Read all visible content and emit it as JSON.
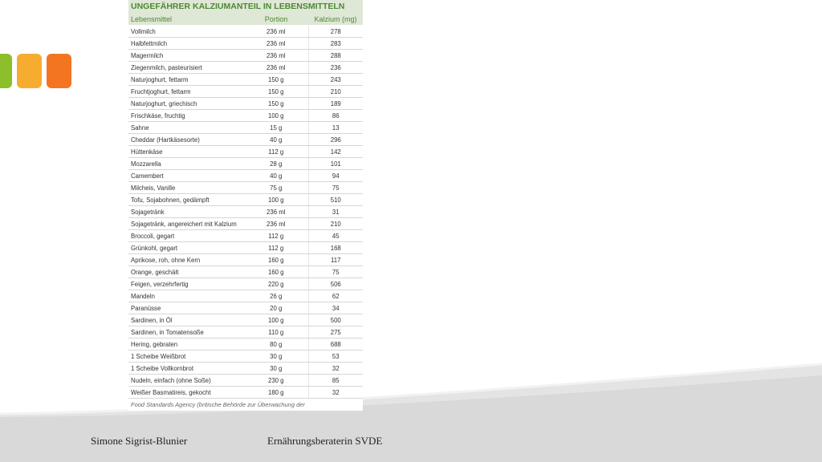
{
  "table": {
    "title": "UNGEFÄHRER KALZIUMANTEIL IN LEBENSMITTELN",
    "headers": [
      "Lebensmittel",
      "Portion",
      "Kalzium (mg)"
    ],
    "rows": [
      [
        "Vollmilch",
        "236 ml",
        "278"
      ],
      [
        "Halbfettmilch",
        "236 ml",
        "283"
      ],
      [
        "Magermilch",
        "236 ml",
        "288"
      ],
      [
        "Ziegenmilch, pasteurisiert",
        "236 ml",
        "236"
      ],
      [
        "Naturjoghurt, fettarm",
        "150 g",
        "243"
      ],
      [
        "Fruchtjoghurt, fettarm",
        "150 g",
        "210"
      ],
      [
        "Naturjoghurt, griechisch",
        "150 g",
        "189"
      ],
      [
        "Frischkäse, fruchtig",
        "100 g",
        "86"
      ],
      [
        "Sahne",
        "15 g",
        "13"
      ],
      [
        "Cheddar (Hartkäsesorte)",
        "40 g",
        "296"
      ],
      [
        "Hüttenkäse",
        "112 g",
        "142"
      ],
      [
        "Mozzarella",
        "28 g",
        "101"
      ],
      [
        "Camembert",
        "40 g",
        "94"
      ],
      [
        "Milcheis, Vanille",
        "75 g",
        "75"
      ],
      [
        "Tofu, Sojabohnen, gedämpft",
        "100 g",
        "510"
      ],
      [
        "Sojagetränk",
        "236 ml",
        "31"
      ],
      [
        "Sojagetränk, angereichert mit Kalzium",
        "236 ml",
        "210"
      ],
      [
        "Broccoli, gegart",
        "112 g",
        "45"
      ],
      [
        "Grünkohl, gegart",
        "112 g",
        "168"
      ],
      [
        "Aprikose, roh, ohne Kern",
        "160 g",
        "117"
      ],
      [
        "Orange, geschält",
        "160 g",
        "75"
      ],
      [
        "Feigen, verzehrfertig",
        "220 g",
        "506"
      ],
      [
        "Mandeln",
        "26 g",
        "62"
      ],
      [
        "Paranüsse",
        "20 g",
        "34"
      ],
      [
        "Sardinen, in Öl",
        "100 g",
        "500"
      ],
      [
        "Sardinen, in Tomatensoße",
        "110 g",
        "275"
      ],
      [
        "Hering, gebraten",
        "80 g",
        "688"
      ],
      [
        "1 Scheibe Weißbrot",
        "30 g",
        "53"
      ],
      [
        "1 Scheibe Vollkornbrot",
        "30 g",
        "32"
      ],
      [
        "Nudeln, einfach (ohne Soße)",
        "230 g",
        "85"
      ],
      [
        "Weißer Basmatireis, gekocht",
        "180 g",
        "32"
      ]
    ],
    "source": "Food Standards Agency (britische Behörde zur Überwachung der"
  },
  "footer": {
    "author": "Simone Sigrist-Blunier",
    "role": "Ernährungsberaterin SVDE"
  },
  "colors": {
    "accent_green": "#8cbf2a",
    "accent_yellow": "#f6ad2f",
    "accent_orange": "#f47521",
    "table_header_bg": "#dfe7d6",
    "table_header_text": "#4b8a31"
  }
}
